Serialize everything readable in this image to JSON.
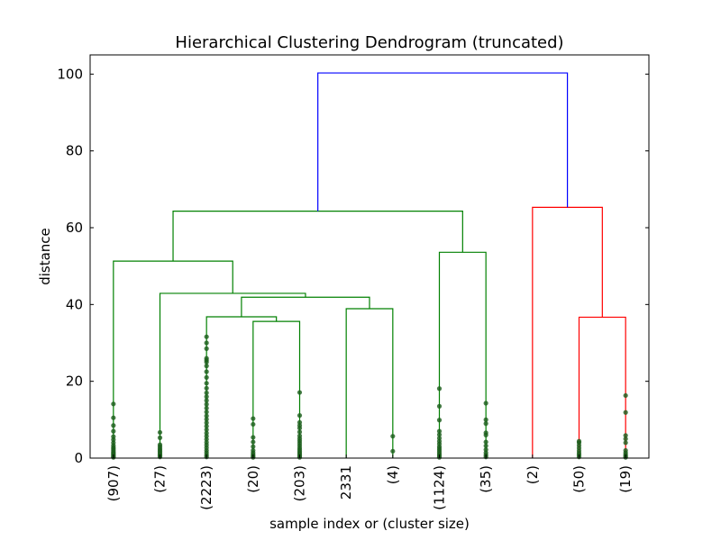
{
  "chart_data": {
    "type": "dendrogram",
    "title": "Hierarchical Clustering Dendrogram (truncated)",
    "xlabel": "sample index or (cluster size)",
    "ylabel": "distance",
    "ylim": [
      0,
      105
    ],
    "yticks": [
      0,
      20,
      40,
      60,
      80,
      100
    ],
    "leaves": [
      "(907)",
      "(27)",
      "(2223)",
      "(20)",
      "(203)",
      "2331",
      "(4)",
      "(1124)",
      "(35)",
      "(2)",
      "(50)",
      "(19)"
    ],
    "colors": {
      "green": "#008000",
      "red": "#ff0000",
      "blue": "#0000ff",
      "dots": "#1a5c1a"
    },
    "links": [
      {
        "left": [
          3,
          0
        ],
        "right": [
          4,
          0
        ],
        "height": 35.6,
        "color": "green"
      },
      {
        "left": [
          2,
          0
        ],
        "right": [
          3.5,
          35.6
        ],
        "height": 36.8,
        "color": "green"
      },
      {
        "left": [
          5,
          0
        ],
        "right": [
          6,
          0
        ],
        "height": 38.9,
        "color": "green"
      },
      {
        "left": [
          2.75,
          36.8
        ],
        "right": [
          5.5,
          38.9
        ],
        "height": 41.9,
        "color": "green"
      },
      {
        "left": [
          1,
          0
        ],
        "right": [
          4.125,
          41.9
        ],
        "height": 42.9,
        "color": "green"
      },
      {
        "left": [
          0,
          0
        ],
        "right": [
          2.5625,
          42.9
        ],
        "height": 51.3,
        "color": "green"
      },
      {
        "left": [
          7,
          0
        ],
        "right": [
          8,
          0
        ],
        "height": 53.6,
        "color": "green"
      },
      {
        "left": [
          1.28125,
          51.3
        ],
        "right": [
          7.5,
          53.6
        ],
        "height": 64.3,
        "color": "green"
      },
      {
        "left": [
          10,
          0
        ],
        "right": [
          11,
          0
        ],
        "height": 36.7,
        "color": "red"
      },
      {
        "left": [
          9,
          0
        ],
        "right": [
          10.5,
          36.7
        ],
        "height": 65.3,
        "color": "red"
      },
      {
        "left": [
          4.390625,
          64.3
        ],
        "right": [
          9.75,
          65.3
        ],
        "height": 100.3,
        "color": "blue"
      }
    ],
    "leaf_points": [
      [
        0.2,
        0.4,
        0.7,
        1.0,
        1.3,
        1.6,
        2.0,
        2.4,
        2.8,
        3.3,
        4.0,
        4.8,
        5.6,
        7.0,
        8.5,
        10.5,
        14.1
      ],
      [
        0.3,
        0.6,
        0.9,
        1.3,
        1.7,
        2.1,
        2.5,
        3.0,
        3.5,
        5.3,
        6.7
      ],
      [
        0.3,
        0.8,
        1.4,
        2.0,
        2.7,
        3.4,
        4.1,
        4.9,
        5.7,
        6.5,
        7.4,
        8.3,
        9.2,
        10.1,
        11.0,
        12.0,
        13.0,
        14.0,
        15.0,
        16.0,
        17.0,
        18.2,
        19.5,
        21.0,
        22.5,
        24.0,
        25.0,
        25.5,
        26.0,
        28.5,
        30.0,
        31.6
      ],
      [
        0.2,
        0.5,
        0.9,
        1.4,
        2.0,
        3.0,
        4.2,
        5.4,
        8.8,
        10.3
      ],
      [
        0.2,
        0.5,
        0.9,
        1.3,
        1.7,
        2.2,
        2.7,
        3.3,
        3.9,
        4.5,
        5.1,
        5.8,
        6.8,
        7.8,
        8.5,
        9.3,
        11.1,
        17.1
      ],
      [],
      [
        1.8,
        5.7
      ],
      [
        0.2,
        0.6,
        1.0,
        1.5,
        2.0,
        2.5,
        3.0,
        3.7,
        4.4,
        5.2,
        6.1,
        7.0,
        9.9,
        13.5,
        18.1
      ],
      [
        0.3,
        0.8,
        1.4,
        2.2,
        3.2,
        4.2,
        6.0,
        6.6,
        9.0,
        10.0,
        14.3
      ],
      [],
      [
        0.3,
        0.8,
        1.3,
        1.9,
        2.6,
        3.3,
        4.0,
        4.4
      ],
      [
        0.2,
        0.5,
        0.9,
        1.4,
        2.0,
        4.0,
        5.0,
        5.9,
        11.9,
        16.3
      ]
    ]
  }
}
